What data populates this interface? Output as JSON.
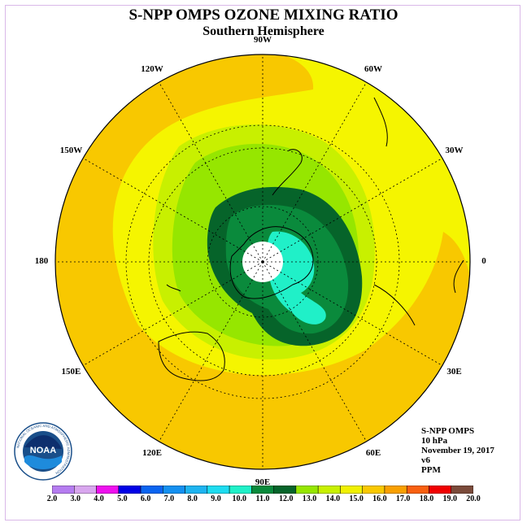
{
  "title": "S-NPP OMPS OZONE MIXING RATIO",
  "subtitle": "Southern Hemisphere",
  "longitude_labels": [
    "90W",
    "60W",
    "30W",
    "0",
    "30E",
    "60E",
    "90E",
    "120E",
    "150E",
    "180",
    "150W",
    "120W"
  ],
  "info": {
    "instrument": "S-NPP OMPS",
    "pressure": "10 hPa",
    "date": "November 19, 2017",
    "version": "v6",
    "units": "PPM"
  },
  "logo": {
    "text": "NOAA",
    "ring_text": "NATIONAL OCEANIC AND ATMOSPHERIC ADMINISTRATION"
  },
  "colorbar": {
    "labels": [
      "2.0",
      "3.0",
      "4.0",
      "5.0",
      "6.0",
      "7.0",
      "8.0",
      "9.0",
      "10.0",
      "11.0",
      "12.0",
      "13.0",
      "14.0",
      "15.0",
      "16.0",
      "17.0",
      "18.0",
      "19.0",
      "20.0"
    ],
    "colors": [
      "#b57cf0",
      "#d8a6ee",
      "#ee10ee",
      "#0000e6",
      "#0a64f0",
      "#1490f0",
      "#1eb4f0",
      "#1edcf0",
      "#20f0c8",
      "#0a8a3c",
      "#06642a",
      "#96e600",
      "#c8f000",
      "#f0f000",
      "#f8c800",
      "#f8a000",
      "#f86010",
      "#f00000",
      "#7a4a3a"
    ]
  },
  "map_colors": {
    "ring_yellow": "#f5f500",
    "band_orange": "#f8c800",
    "lime": "#c8f000",
    "light_green": "#96e600",
    "green": "#0a8a3c",
    "dark_green": "#06642a",
    "cyan": "#20f0c8",
    "pole": "#ffffff"
  }
}
